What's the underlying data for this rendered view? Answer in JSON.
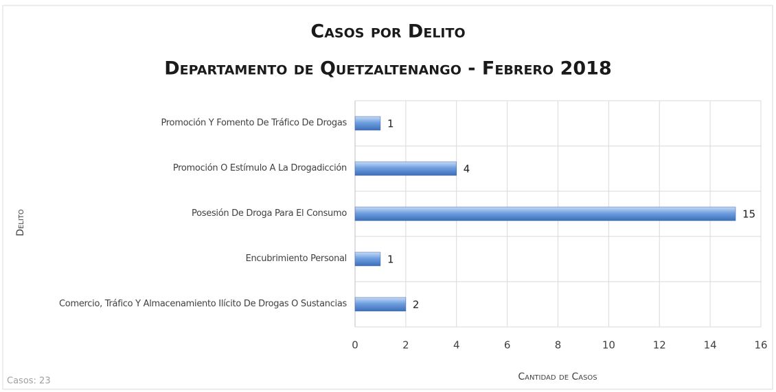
{
  "chart_data": {
    "type": "barh",
    "title": "Casos por Delito",
    "subtitle": "Departamento de Quetzaltenango  - Febrero 2018",
    "categories": [
      "Promoción Y Fomento De Tráfico De Drogas",
      "Promoción O Estímulo A La Drogadicción",
      "Posesión De Droga Para El Consumo",
      "Encubrimiento Personal",
      "Comercio, Tráfico Y Almacenamiento Ilícito De Drogas O Sustancias"
    ],
    "values": [
      1,
      4,
      15,
      1,
      2
    ],
    "color": "#5b8fd6",
    "xlim": [
      0,
      16
    ],
    "xticks": [
      0,
      2,
      4,
      6,
      8,
      10,
      12,
      14,
      16
    ],
    "xlabel": "Cantidad de Casos",
    "ylabel": "Delito",
    "footnote": "Casos: 23",
    "grid": true
  }
}
